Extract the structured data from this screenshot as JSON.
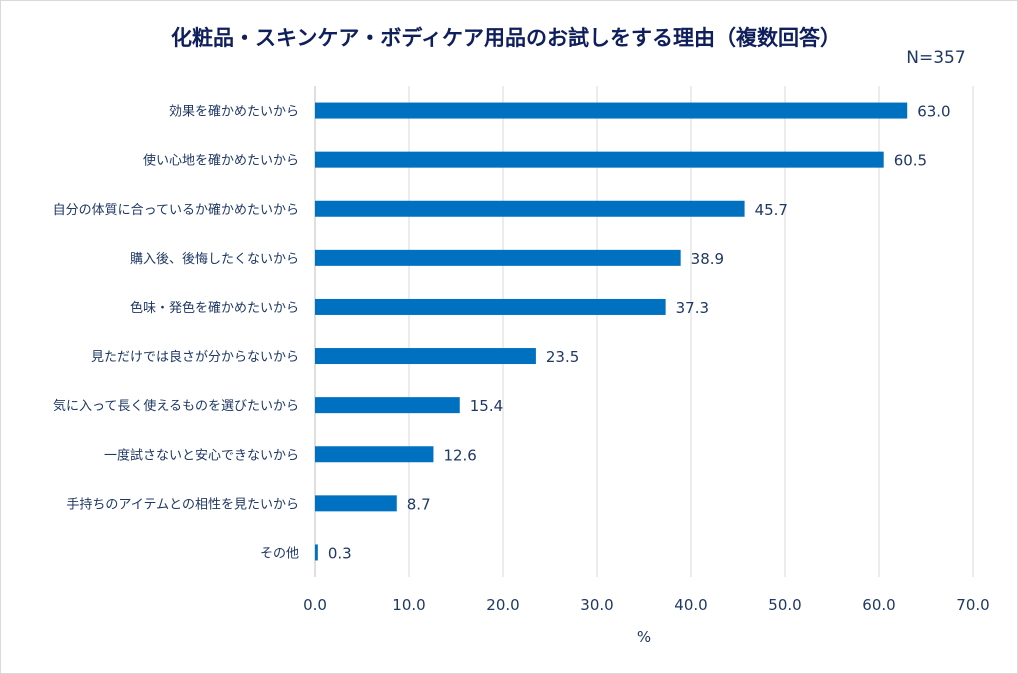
{
  "chart_data": {
    "type": "bar",
    "orientation": "horizontal",
    "title": "化粧品・スキンケア・ボディケア用品のお試しをする理由（複数回答）",
    "subtitle": "N=357",
    "xlabel": "%",
    "ylabel": "",
    "xlim": [
      0,
      70
    ],
    "xticks": [
      "0.0",
      "10.0",
      "20.0",
      "30.0",
      "40.0",
      "50.0",
      "60.0",
      "70.0"
    ],
    "grid": true,
    "bar_color": "#0070c0",
    "categories": [
      "効果を確かめたいから",
      "使い心地を確かめたいから",
      "自分の体質に合っているか確かめたいから",
      "購入後、後悔したくないから",
      "色味・発色を確かめたいから",
      "見ただけでは良さが分からないから",
      "気に入って長く使えるものを選びたいから",
      "一度試さないと安心できないから",
      "手持ちのアイテムとの相性を見たいから",
      "その他"
    ],
    "values": [
      63.0,
      60.5,
      45.7,
      38.9,
      37.3,
      23.5,
      15.4,
      12.6,
      8.7,
      0.3
    ],
    "labels": [
      "63.0",
      "60.5",
      "45.7",
      "38.9",
      "37.3",
      "23.5",
      "15.4",
      "12.6",
      "8.7",
      "0.3"
    ]
  }
}
